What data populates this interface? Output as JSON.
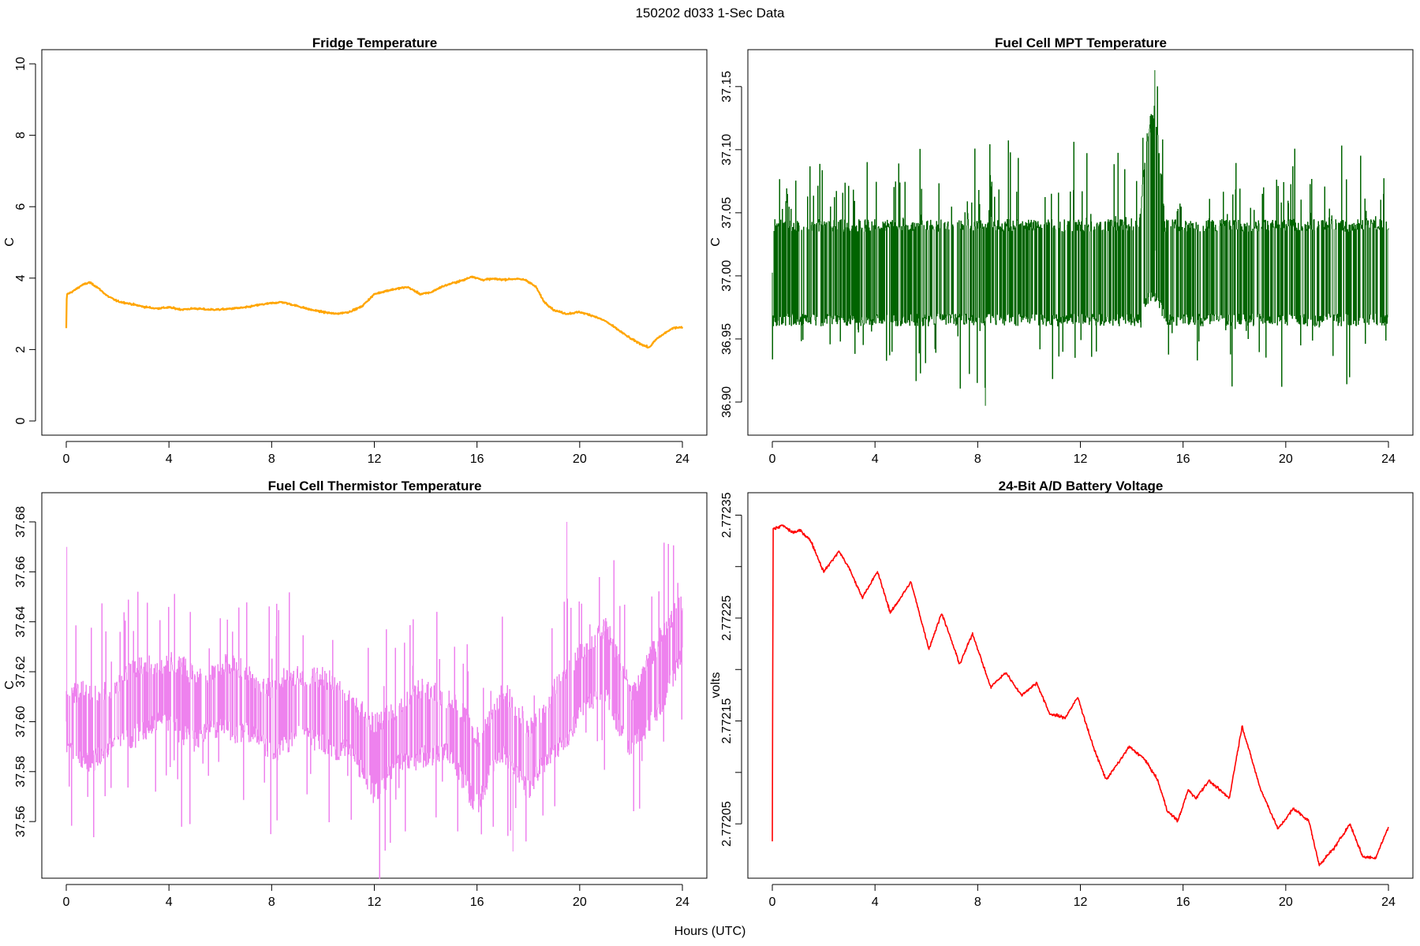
{
  "figure": {
    "title": "150202   d033   1-Sec Data",
    "xlabel": "Hours (UTC)"
  },
  "chart_data": [
    {
      "type": "line",
      "title": "Fridge Temperature",
      "xlabel": "Hours (UTC)",
      "ylabel": "C",
      "color": "#FFA500",
      "xlim": [
        0,
        24
      ],
      "ylim": [
        0,
        10
      ],
      "xticks": [
        "0",
        "4",
        "8",
        "12",
        "16",
        "20",
        "24"
      ],
      "xtick_values": [
        0,
        4,
        8,
        12,
        16,
        20,
        24
      ],
      "yticks": [
        "0",
        "2",
        "4",
        "6",
        "8",
        "10"
      ],
      "ytick_values": [
        0,
        2,
        4,
        6,
        8,
        10
      ],
      "y_tick_rotated": true,
      "noise": 0.02,
      "x": [
        0,
        0.02,
        0.05,
        0.3,
        0.6,
        0.9,
        1.2,
        1.6,
        2.0,
        2.5,
        3.0,
        3.5,
        4.0,
        4.5,
        5.0,
        5.5,
        6.0,
        6.5,
        7.0,
        7.5,
        8.0,
        8.4,
        9.0,
        9.5,
        10.0,
        10.5,
        11.0,
        11.5,
        12.0,
        12.5,
        13.0,
        13.3,
        13.8,
        14.2,
        14.6,
        15.0,
        15.5,
        15.8,
        16.2,
        16.6,
        17.0,
        17.5,
        17.9,
        18.3,
        18.6,
        19.0,
        19.5,
        20.0,
        20.5,
        21.0,
        21.5,
        22.0,
        22.4,
        22.7,
        23.0,
        23.4,
        23.7,
        24.0
      ],
      "values": [
        2.6,
        3.55,
        3.55,
        3.65,
        3.8,
        3.88,
        3.75,
        3.5,
        3.35,
        3.28,
        3.2,
        3.15,
        3.18,
        3.12,
        3.15,
        3.12,
        3.12,
        3.15,
        3.18,
        3.25,
        3.3,
        3.33,
        3.22,
        3.12,
        3.05,
        3.0,
        3.05,
        3.2,
        3.55,
        3.65,
        3.72,
        3.75,
        3.55,
        3.6,
        3.75,
        3.85,
        3.95,
        4.05,
        3.95,
        3.98,
        3.96,
        3.98,
        3.95,
        3.75,
        3.35,
        3.1,
        3.0,
        3.05,
        2.95,
        2.8,
        2.55,
        2.3,
        2.15,
        2.05,
        2.3,
        2.5,
        2.62,
        2.62
      ]
    },
    {
      "type": "line",
      "title": "Fuel Cell MPT Temperature",
      "xlabel": "Hours (UTC)",
      "ylabel": "C",
      "color": "#006400",
      "xlim": [
        0,
        24
      ],
      "ylim": [
        36.885,
        37.168
      ],
      "xticks": [
        "0",
        "4",
        "8",
        "12",
        "16",
        "20",
        "24"
      ],
      "xtick_values": [
        0,
        4,
        8,
        12,
        16,
        20,
        24
      ],
      "yticks": [
        "36.90",
        "36.95",
        "37.00",
        "37.05",
        "37.10",
        "37.15"
      ],
      "ytick_values": [
        36.9,
        36.95,
        37.0,
        37.05,
        37.1,
        37.15
      ],
      "y_tick_rotated": true,
      "noise_band": [
        36.96,
        37.045
      ],
      "spike_range": [
        36.91,
        37.11
      ],
      "anomaly": {
        "x": [
          14.3,
          15.3
        ],
        "band": [
          36.98,
          37.13
        ],
        "dip": 36.91,
        "peak": 37.165
      },
      "extremes": {
        "min": 36.897,
        "max": 37.163
      }
    },
    {
      "type": "line",
      "title": "Fuel Cell Thermistor Temperature",
      "xlabel": "Hours (UTC)",
      "ylabel": "C",
      "color": "#EE82EE",
      "xlim": [
        0,
        24
      ],
      "ylim": [
        37.543,
        37.686
      ],
      "xticks": [
        "0",
        "4",
        "8",
        "12",
        "16",
        "20",
        "24"
      ],
      "xtick_values": [
        0,
        4,
        8,
        12,
        16,
        20,
        24
      ],
      "yticks": [
        "37.56",
        "37.58",
        "37.60",
        "37.62",
        "37.64",
        "37.66",
        "37.68"
      ],
      "ytick_values": [
        37.56,
        37.58,
        37.6,
        37.62,
        37.64,
        37.66,
        37.68
      ],
      "y_tick_rotated": true,
      "center_x": [
        0,
        1,
        2,
        3,
        4,
        5,
        6,
        7,
        8,
        9,
        10,
        11,
        12,
        13,
        14,
        15,
        16,
        17,
        18,
        19,
        20,
        21,
        22,
        23,
        24
      ],
      "center_y": [
        37.6,
        37.598,
        37.603,
        37.61,
        37.612,
        37.605,
        37.61,
        37.608,
        37.6,
        37.607,
        37.604,
        37.6,
        37.585,
        37.595,
        37.6,
        37.598,
        37.58,
        37.6,
        37.585,
        37.6,
        37.615,
        37.625,
        37.6,
        37.617,
        37.638
      ],
      "halfwidth": 0.016,
      "extremes": {
        "min": 37.548,
        "max": 37.68
      }
    },
    {
      "type": "line",
      "title": "24-Bit A/D Battery Voltage",
      "xlabel": "Hours (UTC)",
      "ylabel": "volts",
      "color": "#FF0000",
      "xlim": [
        0,
        24
      ],
      "ylim": [
        2.772011,
        2.772358
      ],
      "xticks": [
        "0",
        "4",
        "8",
        "12",
        "16",
        "20",
        "24"
      ],
      "xtick_values": [
        0,
        4,
        8,
        12,
        16,
        20,
        24
      ],
      "yticks": [
        "2.77205",
        "2.77215",
        "2.77225",
        "2.77235"
      ],
      "ytick_values": [
        2.77205,
        2.77215,
        2.77225,
        2.77235
      ],
      "yticks_minor": [
        "2.77210",
        "2.77220",
        "2.77230"
      ],
      "ytick_minor_values": [
        2.7721,
        2.7722,
        2.7723
      ],
      "y_tick_rotated": true,
      "noise": 1.2e-06,
      "x": [
        0,
        0.03,
        0.1,
        0.4,
        0.8,
        1.1,
        1.5,
        2.0,
        2.6,
        3.0,
        3.5,
        4.1,
        4.6,
        5.4,
        6.1,
        6.6,
        7.3,
        7.8,
        8.5,
        9.1,
        9.7,
        10.3,
        10.8,
        11.4,
        11.9,
        12.5,
        13.0,
        13.5,
        13.9,
        14.5,
        15.0,
        15.4,
        15.8,
        16.2,
        16.5,
        17.0,
        17.8,
        18.3,
        19.0,
        19.7,
        20.3,
        20.9,
        21.3,
        21.9,
        22.5,
        23.0,
        23.5,
        24.0
      ],
      "values": [
        2.772033,
        2.772337,
        2.772337,
        2.77234,
        2.772333,
        2.772335,
        2.772325,
        2.772295,
        2.772315,
        2.772298,
        2.77227,
        2.772295,
        2.772255,
        2.772285,
        2.77222,
        2.772255,
        2.772205,
        2.772235,
        2.772183,
        2.772197,
        2.772175,
        2.772187,
        2.772157,
        2.772153,
        2.772173,
        2.772125,
        2.772093,
        2.77211,
        2.772125,
        2.772113,
        2.772093,
        2.772062,
        2.772053,
        2.772083,
        2.772075,
        2.772092,
        2.772075,
        2.772145,
        2.772085,
        2.772045,
        2.772065,
        2.772053,
        2.77201,
        2.772027,
        2.77205,
        2.772018,
        2.772017,
        2.772047
      ]
    }
  ]
}
